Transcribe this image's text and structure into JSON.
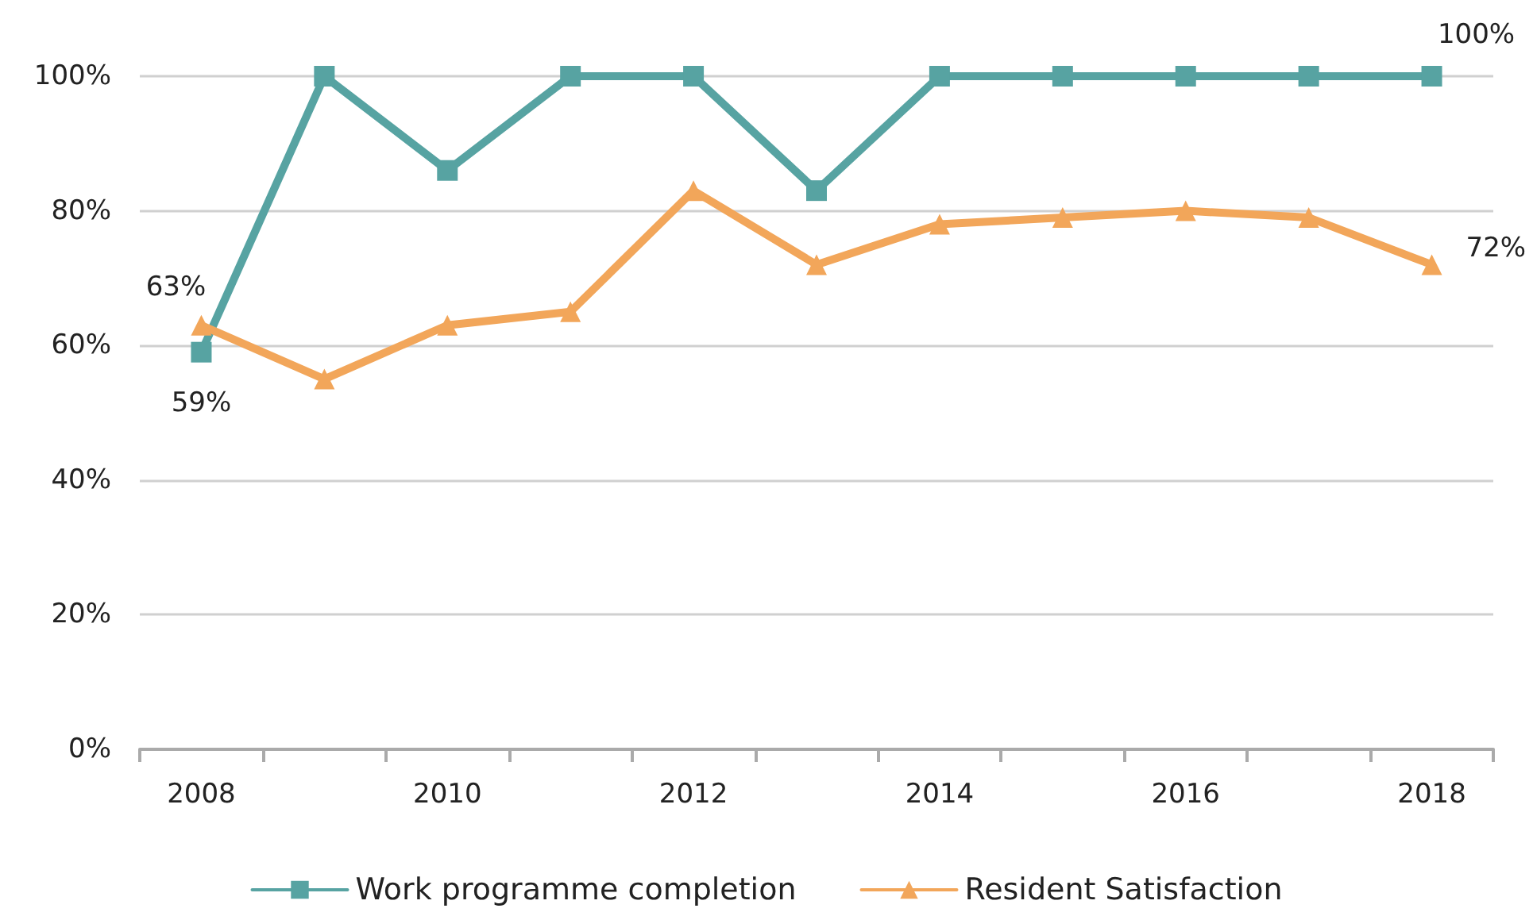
{
  "chart_data": {
    "type": "line",
    "categories": [
      "2008",
      null,
      "2010",
      null,
      "2012",
      null,
      "2014",
      null,
      "2016",
      null,
      "2018"
    ],
    "series": [
      {
        "name": "Work programme completion",
        "color": "#57a3a2",
        "marker": "square",
        "values": [
          59,
          100,
          86,
          100,
          100,
          83,
          100,
          100,
          100,
          100,
          100
        ],
        "value_labels": [
          "59%",
          null,
          null,
          null,
          null,
          null,
          null,
          null,
          null,
          null,
          "100%"
        ]
      },
      {
        "name": "Resident Satisfaction",
        "color": "#f2a65a",
        "marker": "triangle",
        "values": [
          63,
          55,
          63,
          65,
          83,
          72,
          78,
          79,
          80,
          79,
          72
        ],
        "value_labels": [
          "63%",
          null,
          null,
          null,
          null,
          null,
          null,
          null,
          null,
          null,
          "72%"
        ]
      }
    ],
    "ylim": [
      0,
      100
    ],
    "yticks": [
      {
        "value": 0,
        "label": "0%"
      },
      {
        "value": 20,
        "label": "20%"
      },
      {
        "value": 40,
        "label": "40%"
      },
      {
        "value": 60,
        "label": "60%"
      },
      {
        "value": 80,
        "label": "80%"
      },
      {
        "value": 100,
        "label": "100%"
      }
    ],
    "grid": "y",
    "legend": "bottom",
    "line_style": "solid"
  }
}
